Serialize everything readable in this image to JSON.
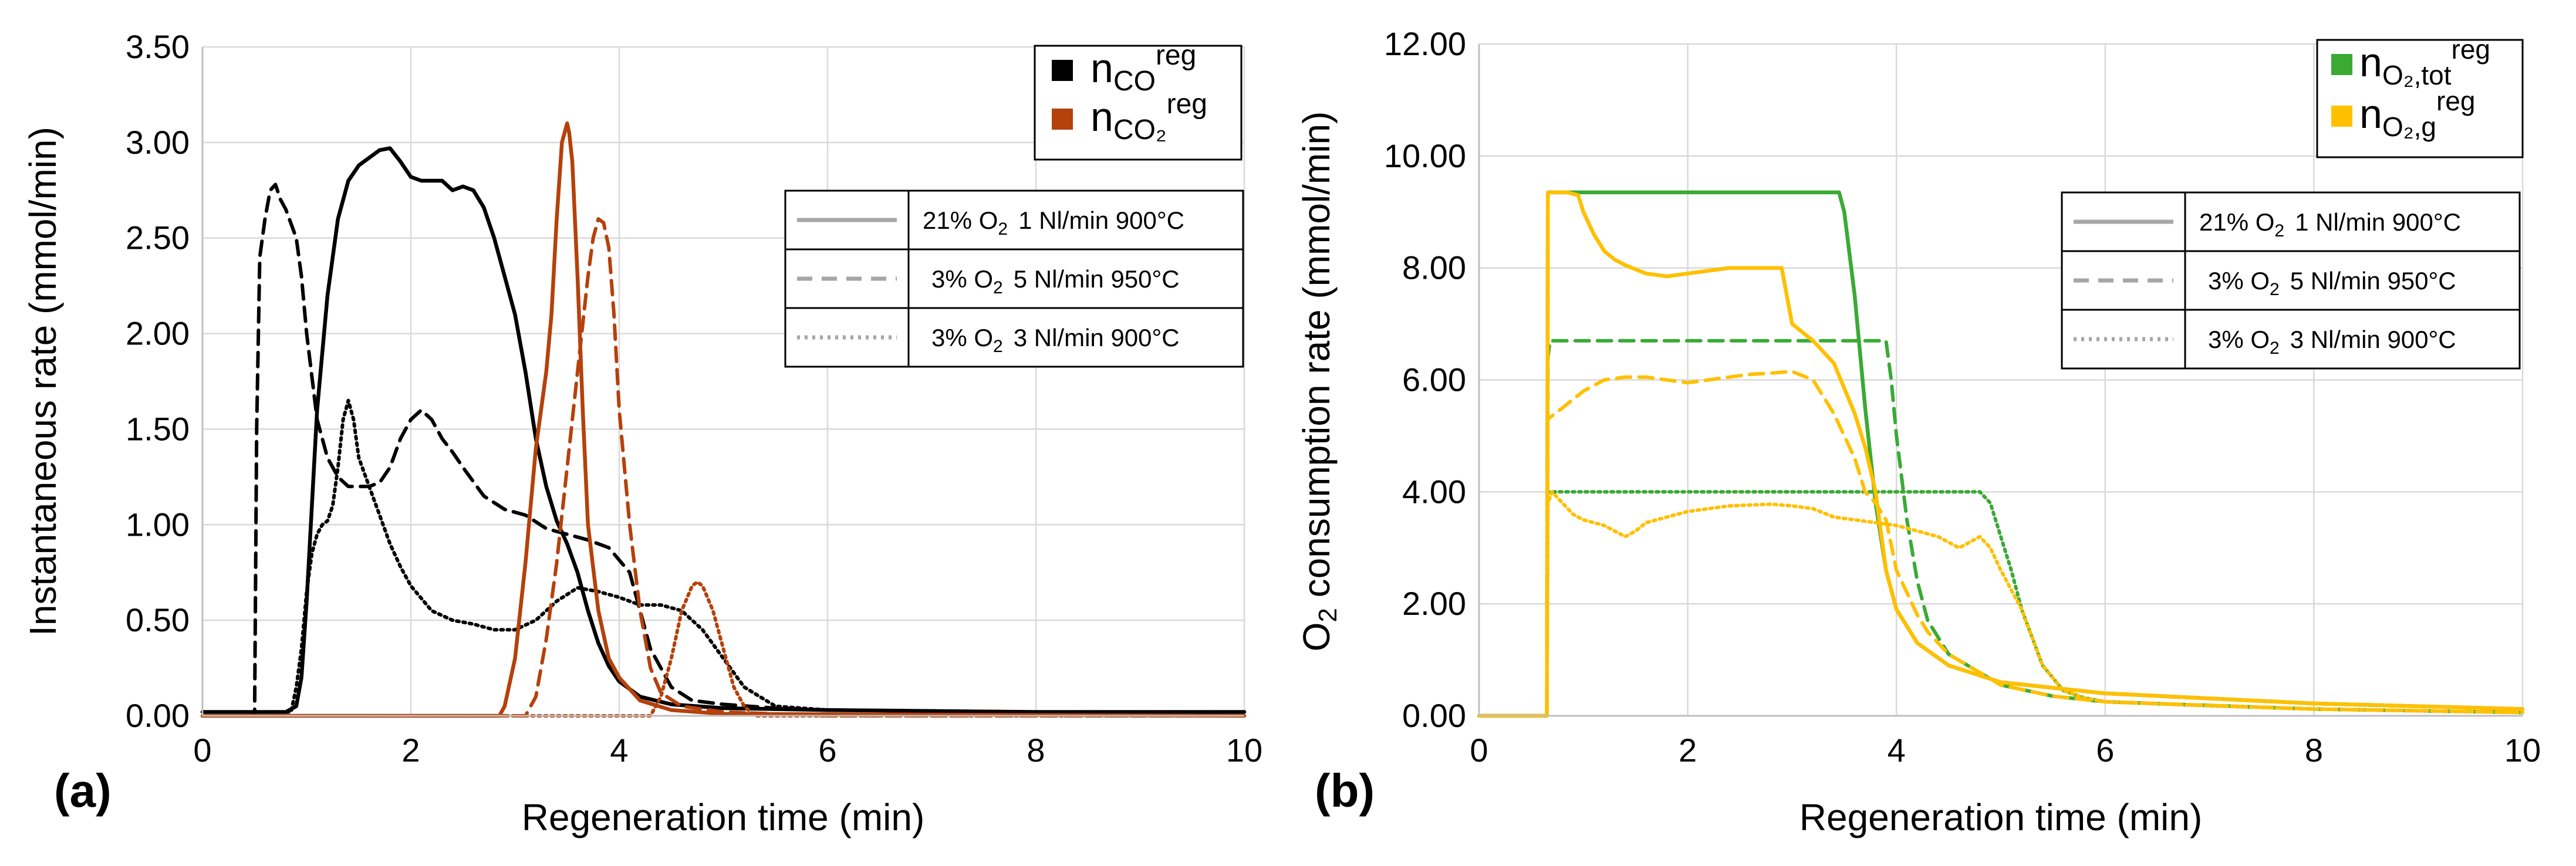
{
  "colors": {
    "co": "#000000",
    "co2": "#b5410b",
    "o2_tot": "#3aaa35",
    "o2_g": "#ffc000",
    "grid": "#d9d9d9",
    "style_gray": "#a6a6a6"
  },
  "chart_data": [
    {
      "type": "line",
      "panel_label": "(a)",
      "xlabel": "Regeneration time (min)",
      "ylabel": "Instantaneous rate (mmol/min)",
      "xlim": [
        0,
        10
      ],
      "ylim": [
        0,
        3.5
      ],
      "xticks": [
        "0",
        "2",
        "4",
        "6",
        "8",
        "10"
      ],
      "yticks": [
        "0.00",
        "0.50",
        "1.00",
        "1.50",
        "2.00",
        "2.50",
        "3.00",
        "3.50"
      ],
      "legend_series": [
        {
          "key": "co",
          "base": "n",
          "sub": "CO",
          "sup": "reg"
        },
        {
          "key": "co2",
          "base": "n",
          "sub": "CO₂",
          "sup": "reg"
        }
      ],
      "legend_styles": [
        {
          "dash": "solid",
          "o2": "21% O",
          "o2_sub": "2",
          "conditions": "1 Nl/min 900°C"
        },
        {
          "dash": "dashed",
          "o2": "3% O",
          "o2_sub": "2",
          "conditions": "5 Nl/min 950°C"
        },
        {
          "dash": "dotted",
          "o2": "3% O",
          "o2_sub": "2",
          "conditions": "3 Nl/min 900°C"
        }
      ],
      "series": [
        {
          "name": "CO 21% O2 1 Nl/min 900°C",
          "color_key": "co",
          "dash": "solid",
          "x": [
            0,
            0.8,
            0.9,
            0.95,
            1.0,
            1.05,
            1.1,
            1.2,
            1.3,
            1.4,
            1.5,
            1.6,
            1.7,
            1.8,
            1.9,
            2.0,
            2.1,
            2.3,
            2.4,
            2.5,
            2.6,
            2.7,
            2.8,
            2.9,
            3.0,
            3.1,
            3.2,
            3.3,
            3.4,
            3.5,
            3.6,
            3.7,
            3.8,
            3.9,
            4.0,
            4.2,
            4.5,
            5.0,
            6.0,
            8.0,
            10.0
          ],
          "y": [
            0.02,
            0.02,
            0.05,
            0.2,
            0.6,
            1.1,
            1.6,
            2.2,
            2.6,
            2.8,
            2.88,
            2.92,
            2.96,
            2.97,
            2.9,
            2.82,
            2.8,
            2.8,
            2.75,
            2.77,
            2.75,
            2.66,
            2.5,
            2.3,
            2.1,
            1.8,
            1.45,
            1.2,
            1.02,
            0.9,
            0.75,
            0.55,
            0.38,
            0.26,
            0.18,
            0.1,
            0.06,
            0.04,
            0.03,
            0.02,
            0.02
          ]
        },
        {
          "name": "CO 3% O2 5 Nl/min 950°C",
          "color_key": "co",
          "dash": "dashed",
          "x": [
            0,
            0.5,
            0.52,
            0.55,
            0.6,
            0.65,
            0.7,
            0.75,
            0.8,
            0.9,
            0.95,
            1.0,
            1.1,
            1.2,
            1.3,
            1.4,
            1.5,
            1.6,
            1.7,
            1.8,
            1.9,
            2.0,
            2.1,
            2.2,
            2.3,
            2.4,
            2.5,
            2.7,
            2.9,
            3.1,
            3.3,
            3.5,
            3.7,
            3.9,
            4.1,
            4.3,
            4.5,
            4.7,
            5.0,
            5.5,
            6.0,
            8.0,
            10.0
          ],
          "y": [
            0,
            0,
            1.5,
            2.4,
            2.6,
            2.75,
            2.78,
            2.7,
            2.65,
            2.5,
            2.3,
            2.0,
            1.55,
            1.35,
            1.25,
            1.2,
            1.2,
            1.2,
            1.22,
            1.3,
            1.45,
            1.55,
            1.6,
            1.55,
            1.45,
            1.38,
            1.3,
            1.15,
            1.08,
            1.05,
            0.98,
            0.95,
            0.92,
            0.88,
            0.75,
            0.35,
            0.15,
            0.08,
            0.06,
            0.04,
            0.03,
            0.02,
            0.02
          ]
        },
        {
          "name": "CO 3% O2 3 Nl/min 900°C",
          "color_key": "co",
          "dash": "dotted",
          "x": [
            0,
            0.85,
            0.9,
            0.95,
            1.0,
            1.05,
            1.1,
            1.15,
            1.2,
            1.25,
            1.3,
            1.35,
            1.4,
            1.45,
            1.5,
            1.6,
            1.7,
            1.8,
            1.9,
            2.0,
            2.2,
            2.4,
            2.6,
            2.8,
            3.0,
            3.2,
            3.4,
            3.6,
            3.8,
            4.0,
            4.2,
            4.4,
            4.6,
            4.8,
            5.0,
            5.2,
            5.5,
            6.0,
            8.0,
            10.0
          ],
          "y": [
            0.02,
            0.02,
            0.15,
            0.35,
            0.65,
            0.85,
            0.95,
            1.0,
            1.02,
            1.1,
            1.3,
            1.55,
            1.65,
            1.55,
            1.35,
            1.2,
            1.05,
            0.9,
            0.78,
            0.68,
            0.55,
            0.5,
            0.48,
            0.45,
            0.45,
            0.5,
            0.6,
            0.67,
            0.65,
            0.62,
            0.58,
            0.58,
            0.55,
            0.45,
            0.3,
            0.15,
            0.05,
            0.03,
            0.02,
            0.02
          ]
        },
        {
          "name": "CO2 21% O2 1 Nl/min 900°C",
          "color_key": "co2",
          "dash": "solid",
          "x": [
            0,
            2.85,
            2.9,
            3.0,
            3.1,
            3.2,
            3.3,
            3.35,
            3.4,
            3.45,
            3.5,
            3.52,
            3.55,
            3.6,
            3.65,
            3.7,
            3.8,
            3.9,
            4.0,
            4.2,
            4.5,
            5.0,
            10.0
          ],
          "y": [
            0,
            0,
            0.05,
            0.3,
            0.8,
            1.4,
            1.8,
            2.1,
            2.6,
            3.0,
            3.1,
            3.05,
            2.9,
            2.3,
            1.6,
            1.0,
            0.55,
            0.3,
            0.2,
            0.08,
            0.03,
            0.01,
            0.0
          ]
        },
        {
          "name": "CO2 3% O2 5 Nl/min 950°C",
          "color_key": "co2",
          "dash": "dashed",
          "x": [
            0,
            3.1,
            3.2,
            3.3,
            3.4,
            3.5,
            3.6,
            3.7,
            3.75,
            3.8,
            3.85,
            3.9,
            3.95,
            4.0,
            4.05,
            4.1,
            4.2,
            4.3,
            4.4,
            4.6,
            5.0,
            6.0,
            10.0
          ],
          "y": [
            0,
            0,
            0.1,
            0.4,
            0.8,
            1.3,
            1.8,
            2.3,
            2.5,
            2.6,
            2.58,
            2.45,
            2.1,
            1.6,
            1.3,
            1.0,
            0.55,
            0.25,
            0.12,
            0.05,
            0.02,
            0.0,
            0.0
          ]
        },
        {
          "name": "CO2 3% O2 3 Nl/min 900°C",
          "color_key": "co2",
          "dash": "dotted",
          "x": [
            0,
            4.3,
            4.4,
            4.5,
            4.6,
            4.7,
            4.75,
            4.8,
            4.9,
            5.0,
            5.1,
            5.2,
            5.3,
            10.0
          ],
          "y": [
            0,
            0,
            0.1,
            0.3,
            0.55,
            0.68,
            0.7,
            0.68,
            0.55,
            0.35,
            0.15,
            0.05,
            0.0,
            0.0
          ]
        }
      ]
    },
    {
      "type": "line",
      "panel_label": "(b)",
      "xlabel": "Regeneration time (min)",
      "ylabel_pre": "O",
      "ylabel_sub": "2",
      "ylabel_post": " consumption rate (mmol/min)",
      "xlim": [
        0,
        10
      ],
      "ylim": [
        0,
        12
      ],
      "xticks": [
        "0",
        "2",
        "4",
        "6",
        "8",
        "10"
      ],
      "yticks": [
        "0.00",
        "2.00",
        "4.00",
        "6.00",
        "8.00",
        "10.00",
        "12.00"
      ],
      "legend_series": [
        {
          "key": "o2_tot",
          "base": "n",
          "sub": "O₂,tot",
          "sup": "reg"
        },
        {
          "key": "o2_g",
          "base": "n",
          "sub": "O₂,g",
          "sup": "reg"
        }
      ],
      "legend_styles": [
        {
          "dash": "solid",
          "o2": "21% O",
          "o2_sub": "2",
          "conditions": "1 Nl/min 900°C"
        },
        {
          "dash": "dashed",
          "o2": "3% O",
          "o2_sub": "2",
          "conditions": "5 Nl/min 950°C"
        },
        {
          "dash": "dotted",
          "o2": "3% O",
          "o2_sub": "2",
          "conditions": "3 Nl/min 900°C"
        }
      ],
      "series": [
        {
          "name": "O2 tot 21% O2 1 Nl/min 900°C",
          "color_key": "o2_tot",
          "dash": "solid",
          "x": [
            0,
            0.65,
            0.66,
            3.45,
            3.5,
            3.6,
            3.7,
            3.8,
            3.9,
            4.0,
            4.2,
            4.5,
            5.0,
            6.0,
            8.0,
            10.0
          ],
          "y": [
            0,
            0,
            9.35,
            9.35,
            9.0,
            7.5,
            5.5,
            3.8,
            2.6,
            1.9,
            1.3,
            0.9,
            0.6,
            0.4,
            0.22,
            0.12
          ]
        },
        {
          "name": "O2 tot 3% O2 5 Nl/min 950°C",
          "color_key": "o2_tot",
          "dash": "dashed",
          "x": [
            0,
            0.65,
            0.66,
            0.68,
            3.9,
            3.95,
            4.0,
            4.1,
            4.2,
            4.3,
            4.5,
            5.0,
            5.5,
            6.0,
            8.0,
            10.0
          ],
          "y": [
            0,
            0,
            6.4,
            6.7,
            6.7,
            6.0,
            5.0,
            3.5,
            2.4,
            1.7,
            1.1,
            0.55,
            0.35,
            0.25,
            0.12,
            0.06
          ]
        },
        {
          "name": "O2 tot 3% O2 3 Nl/min 900°C",
          "color_key": "o2_tot",
          "dash": "dotted",
          "x": [
            0,
            0.65,
            0.66,
            4.8,
            4.9,
            5.0,
            5.1,
            5.2,
            5.4,
            5.6,
            5.8,
            6.0,
            7.0,
            8.0,
            10.0
          ],
          "y": [
            0,
            0,
            4.0,
            4.0,
            3.8,
            3.2,
            2.6,
            1.9,
            0.9,
            0.45,
            0.32,
            0.25,
            0.18,
            0.12,
            0.06
          ]
        },
        {
          "name": "O2 g 21% O2 1 Nl/min 900°C",
          "color_key": "o2_g",
          "dash": "solid",
          "x": [
            0,
            0.65,
            0.66,
            0.85,
            0.95,
            1.0,
            1.1,
            1.2,
            1.3,
            1.4,
            1.6,
            1.8,
            2.0,
            2.2,
            2.4,
            2.6,
            2.9,
            2.95,
            3.0,
            3.2,
            3.4,
            3.6,
            3.7,
            3.8,
            3.9,
            4.0,
            4.2,
            4.5,
            5.0,
            6.0,
            8.0,
            10.0
          ],
          "y": [
            0,
            0,
            9.35,
            9.35,
            9.3,
            9.0,
            8.6,
            8.3,
            8.15,
            8.05,
            7.9,
            7.85,
            7.9,
            7.95,
            8.0,
            8.0,
            8.0,
            7.5,
            7.0,
            6.7,
            6.3,
            5.4,
            4.8,
            4.0,
            2.6,
            1.9,
            1.3,
            0.9,
            0.6,
            0.4,
            0.22,
            0.12
          ]
        },
        {
          "name": "O2 g 3% O2 5 Nl/min 950°C",
          "color_key": "o2_g",
          "dash": "dashed",
          "x": [
            0,
            0.65,
            0.66,
            0.8,
            1.0,
            1.2,
            1.4,
            1.6,
            1.8,
            2.0,
            2.2,
            2.4,
            2.6,
            2.8,
            3.0,
            3.2,
            3.4,
            3.6,
            3.7,
            3.8,
            3.9,
            4.0,
            4.1,
            4.2,
            4.3,
            4.5,
            5.0,
            5.5,
            6.0,
            8.0,
            10.0
          ],
          "y": [
            0,
            0,
            5.3,
            5.5,
            5.8,
            6.0,
            6.05,
            6.05,
            6.0,
            5.95,
            6.0,
            6.05,
            6.1,
            6.12,
            6.15,
            6.0,
            5.4,
            4.6,
            4.0,
            3.8,
            3.5,
            2.6,
            2.2,
            1.8,
            1.5,
            1.1,
            0.55,
            0.35,
            0.25,
            0.12,
            0.06
          ]
        },
        {
          "name": "O2 g 3% O2 3 Nl/min 900°C",
          "color_key": "o2_g",
          "dash": "dotted",
          "x": [
            0,
            0.65,
            0.66,
            0.7,
            0.8,
            0.9,
            1.0,
            1.2,
            1.4,
            1.5,
            1.6,
            1.8,
            2.0,
            2.4,
            2.8,
            3.0,
            3.2,
            3.4,
            3.6,
            3.8,
            4.0,
            4.2,
            4.4,
            4.6,
            4.8,
            4.9,
            5.0,
            5.2,
            5.4,
            5.6,
            5.8,
            6.0,
            7.0,
            8.0,
            10.0
          ],
          "y": [
            0,
            0,
            3.8,
            4.0,
            3.8,
            3.6,
            3.5,
            3.4,
            3.2,
            3.3,
            3.45,
            3.55,
            3.65,
            3.75,
            3.78,
            3.75,
            3.7,
            3.55,
            3.5,
            3.45,
            3.4,
            3.3,
            3.2,
            3.0,
            3.2,
            3.0,
            2.6,
            1.9,
            0.9,
            0.45,
            0.32,
            0.25,
            0.18,
            0.12,
            0.06
          ]
        }
      ]
    }
  ]
}
